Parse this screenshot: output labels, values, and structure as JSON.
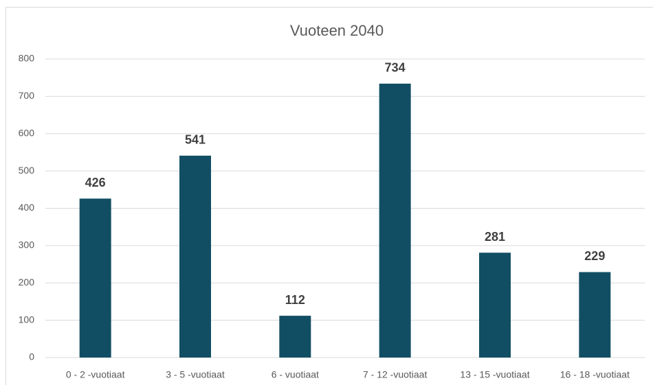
{
  "chart_data": {
    "type": "bar",
    "title": "Vuoteen 2040",
    "categories": [
      "0 - 2 -vuotiaat",
      "3 - 5 -vuotiaat",
      "6 - vuotiaat",
      "7 - 12 -vuotiaat",
      "13 - 15 -vuotiaat",
      "16 - 18 -vuotiaat"
    ],
    "values": [
      426,
      541,
      112,
      734,
      281,
      229
    ],
    "color": "#124e63",
    "ylim": [
      0,
      800
    ],
    "yticks": [
      0,
      100,
      200,
      300,
      400,
      500,
      600,
      700,
      800
    ],
    "grid": true
  }
}
